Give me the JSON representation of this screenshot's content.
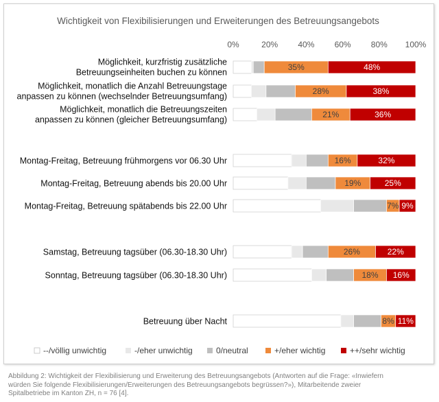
{
  "chart_data": {
    "type": "bar",
    "orientation": "horizontal",
    "stacked": "percent",
    "title": "Wichtigkeit von Flexibilisierungen und Erweiterungen des Betreuungsangebots",
    "xlim": [
      0,
      100
    ],
    "tick_values": [
      0,
      20,
      40,
      60,
      80,
      100
    ],
    "ticks": [
      "0%",
      "20%",
      "40%",
      "60%",
      "80%",
      "100%"
    ],
    "value_suffix": "%",
    "legend_position": "bottom",
    "categories": [
      [
        "Möglichkeit, kurzfristig zusätzliche",
        "Betreuungseinheiten buchen zu können"
      ],
      [
        "Möglichkeit, monatlich die Anzahl Betreuungstage",
        "anpassen zu können (wechselnder Betreuungsumfang)"
      ],
      [
        "Möglichkeit, monatlich die Betreuungszeiten",
        "anpassen zu können (gleicher Betreuungsumfang)"
      ],
      [
        "Montag-Freitag, Betreuung frühmorgens vor 06.30 Uhr"
      ],
      [
        "Montag-Freitag, Betreuung abends bis 20.00 Uhr"
      ],
      [
        "Montag-Freitag, Betreuung spätabends bis 22.00 Uhr"
      ],
      [
        "Samstag, Betreuung tagsüber (06.30-18.30 Uhr)"
      ],
      [
        "Sonntag, Betreuung tagsüber (06.30-18.30 Uhr)"
      ],
      [
        "Betreuung über Nacht"
      ]
    ],
    "series": [
      {
        "name": "--/völlig unwichtig",
        "color": "#ffffff",
        "labeled": false,
        "values": [
          10,
          10,
          13,
          32,
          30,
          48,
          32,
          43,
          59
        ]
      },
      {
        "name": "-/eher unwichtig",
        "color": "#e8e8e8",
        "labeled": false,
        "values": [
          1,
          8,
          10,
          8,
          10,
          18,
          6,
          8,
          7
        ]
      },
      {
        "name": "0/neutral",
        "color": "#bfbfbf",
        "labeled": false,
        "values": [
          6,
          16,
          20,
          12,
          16,
          18,
          14,
          15,
          15
        ]
      },
      {
        "name": "+/eher wichtig",
        "color": "#ef8a3b",
        "labeled": true,
        "label_color": "#404040",
        "values": [
          35,
          28,
          21,
          16,
          19,
          7,
          26,
          18,
          8
        ]
      },
      {
        "name": "++/sehr wichtig",
        "color": "#c00000",
        "labeled": true,
        "label_color": "#ffffff",
        "values": [
          48,
          38,
          36,
          32,
          25,
          9,
          22,
          16,
          11
        ]
      }
    ]
  },
  "caption": {
    "lines": [
      "Abbildung 2: Wichtigkeit der Flexibilisierung und Erweiterung des Betreuungsangebots (Antworten auf die Frage: «Inwiefern",
      "würden Sie folgende Flexibilisierungen/Erweiterungen des Betreuungsangebots begrüssen?»), Mitarbeitende zweier",
      "Spitalbetriebe im Kanton ZH, n = 76 [4]."
    ]
  }
}
